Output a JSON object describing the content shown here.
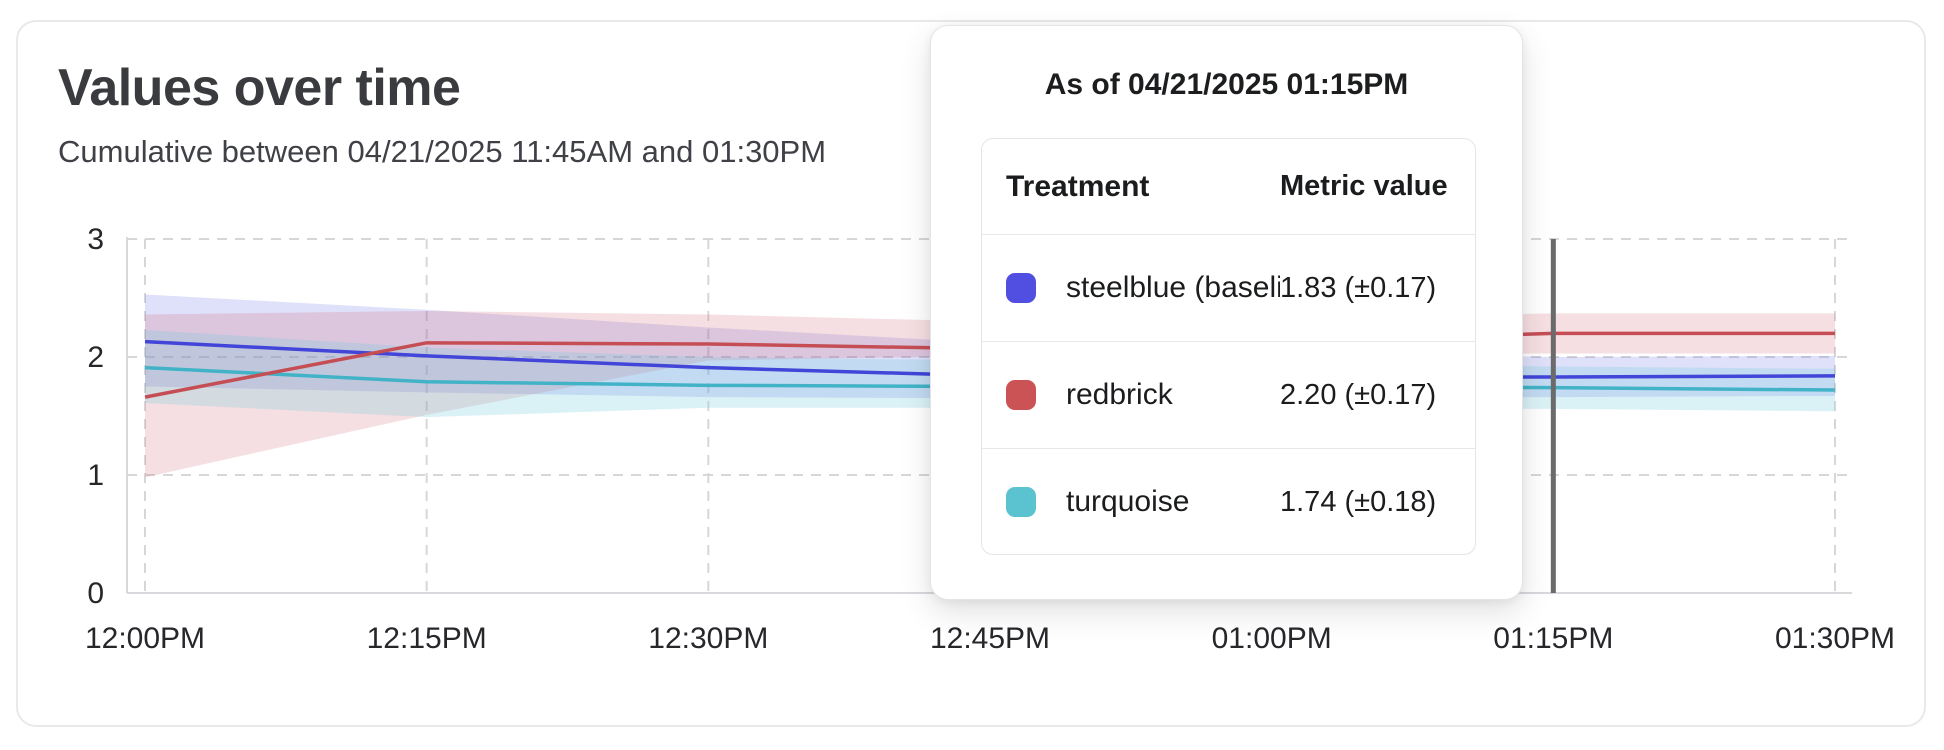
{
  "card": {
    "title": "Values over time",
    "subtitle": "Cumulative between 04/21/2025 11:45AM and 01:30PM"
  },
  "tooltip": {
    "title": "As of 04/21/2025 01:15PM",
    "columns": [
      "Treatment",
      "Metric value"
    ],
    "rows": [
      {
        "treatment": "steelblue  (baseli",
        "metric_value": "1.83 (±0.17)",
        "swatch_color": "#514fe1"
      },
      {
        "treatment": "redbrick",
        "metric_value": "2.20 (±0.17)",
        "swatch_color": "#cc5355"
      },
      {
        "treatment": "turquoise",
        "metric_value": "1.74 (±0.18)",
        "swatch_color": "#5ac3cf"
      }
    ]
  },
  "chart_data": {
    "type": "line",
    "title": "Values over time",
    "xlabel": "",
    "ylabel": "",
    "x_labels": [
      "12:00PM",
      "12:15PM",
      "12:30PM",
      "12:45PM",
      "01:00PM",
      "01:15PM",
      "01:30PM"
    ],
    "y_ticks": [
      0,
      1,
      2,
      3
    ],
    "ylim": [
      0,
      3
    ],
    "grid": "dashed",
    "grid_color": "#d7d7da",
    "axis_color": "#d9d9dd",
    "tick_label_color": "#26272b",
    "hover": {
      "x_label": "01:15PM",
      "line_color": "#6b6b6b"
    },
    "series": [
      {
        "name": "steelblue (baseline)",
        "color": "#4245d8",
        "band_color": "rgba(96,102,228,0.20)",
        "values": [
          2.13,
          2.01,
          1.91,
          1.84,
          1.83,
          1.83,
          1.84
        ],
        "band_upper": [
          2.53,
          2.4,
          2.25,
          2.12,
          2.05,
          2.0,
          2.01
        ],
        "band_lower": [
          1.75,
          1.7,
          1.66,
          1.65,
          1.66,
          1.66,
          1.67
        ]
      },
      {
        "name": "redbrick",
        "color": "#c54e55",
        "band_color": "rgba(208,95,108,0.20)",
        "values": [
          1.66,
          2.12,
          2.11,
          2.07,
          2.13,
          2.2,
          2.2
        ],
        "band_upper": [
          2.36,
          2.39,
          2.36,
          2.3,
          2.33,
          2.37,
          2.37
        ],
        "band_lower": [
          0.98,
          1.51,
          1.97,
          2.01,
          2.02,
          2.03,
          2.03
        ]
      },
      {
        "name": "turquoise",
        "color": "#42b3c6",
        "band_color": "rgba(106,204,220,0.25)",
        "values": [
          1.91,
          1.79,
          1.76,
          1.75,
          1.75,
          1.74,
          1.72
        ],
        "band_upper": [
          2.23,
          2.08,
          2.0,
          1.97,
          1.95,
          1.92,
          1.9
        ],
        "band_lower": [
          1.61,
          1.49,
          1.57,
          1.57,
          1.56,
          1.56,
          1.54
        ]
      }
    ]
  }
}
